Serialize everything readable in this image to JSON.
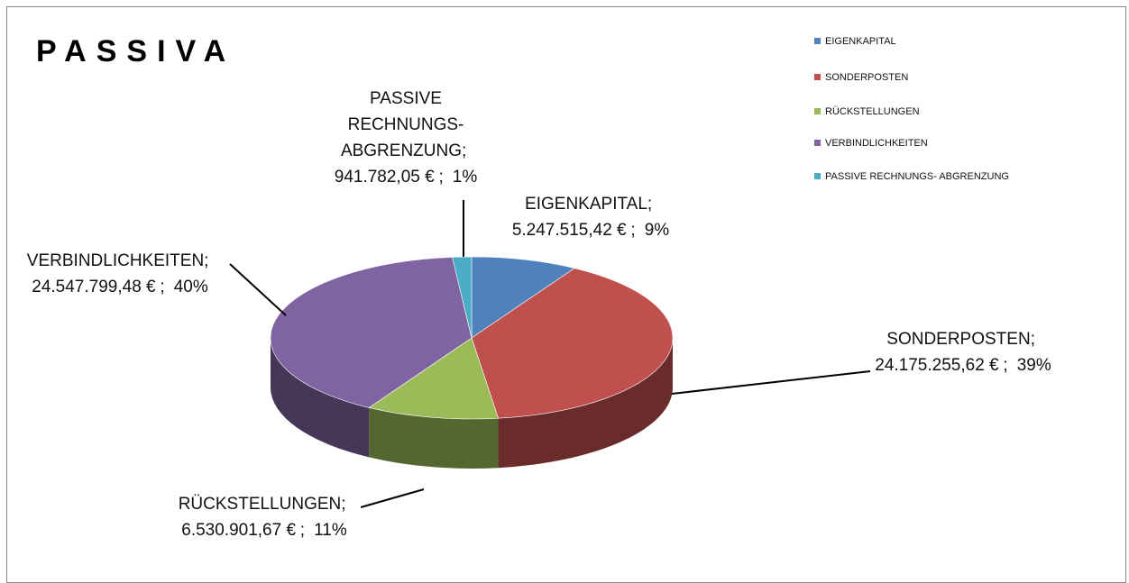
{
  "chart_data": {
    "type": "pie3d",
    "title": "PASSIVA",
    "categories": [
      "EIGENKAPITAL",
      "SONDERPOSTEN",
      "RÜCKSTELLUNGEN",
      "VERBINDLICHKEITEN",
      "PASSIVE RECHNUNGS- ABGRENZUNG"
    ],
    "values": [
      5247515.42,
      24175255.62,
      6530901.67,
      24547799.48,
      941782.05
    ],
    "value_labels": [
      "5.247.515,42 €",
      "24.175.255,62 €",
      "6.530.901,67 €",
      "24.547.799,48 €",
      "941.782,05 €"
    ],
    "percents": [
      9,
      39,
      11,
      40,
      1
    ],
    "percent_labels": [
      "9%",
      "39%",
      "11%",
      "40%",
      "1%"
    ],
    "separator": ";",
    "colors": [
      "#4f81bd",
      "#c0504d",
      "#9bbb59",
      "#8064a2",
      "#4bacc6"
    ],
    "legend": "top-right"
  }
}
